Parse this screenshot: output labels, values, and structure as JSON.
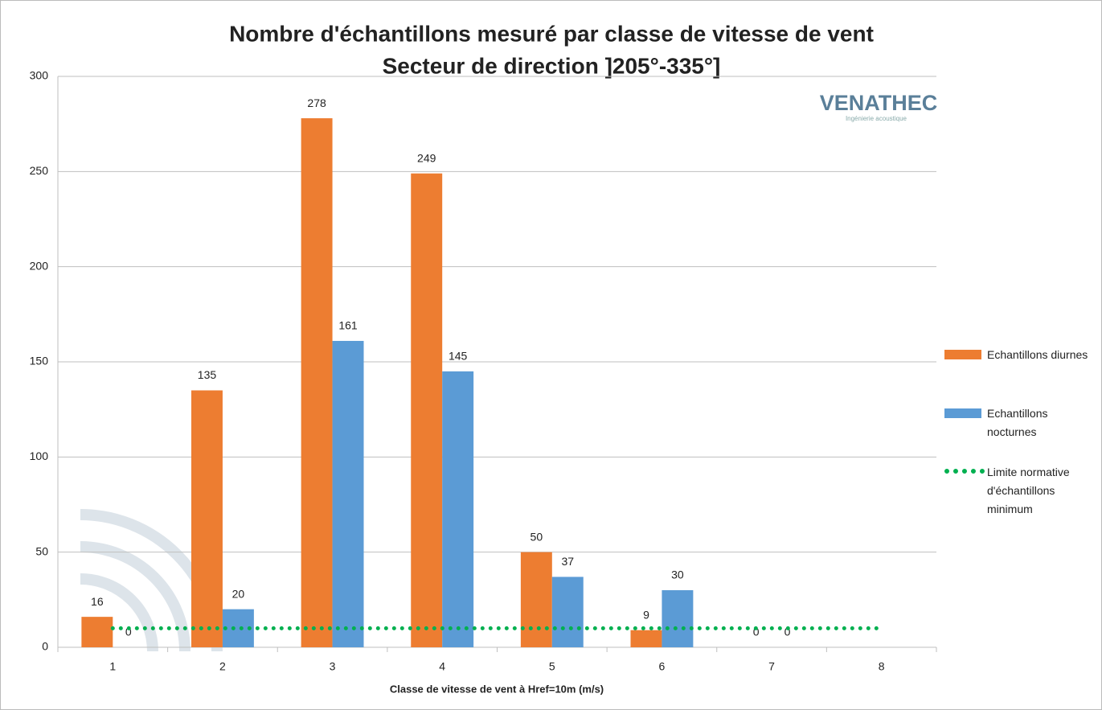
{
  "chart_data": {
    "type": "bar",
    "title": "Nombre d'échantillons mesuré par classe de vitesse de vent",
    "subtitle": "Secteur de direction ]205°-335°]",
    "x_label": "Classe de vitesse de vent à Href=10m (m/s)",
    "logo": {
      "name": "VENATHEC",
      "tagline": "Ingénierie acoustique"
    },
    "categories": [
      "1",
      "2",
      "3",
      "4",
      "5",
      "6",
      "7",
      "8"
    ],
    "series": [
      {
        "name": "Echantillons diurnes",
        "color": "#ED7D31",
        "values": [
          16,
          135,
          278,
          249,
          50,
          9,
          0,
          null
        ]
      },
      {
        "name": "Echantillons nocturnes",
        "color": "#5B9BD5",
        "values": [
          0,
          20,
          161,
          145,
          37,
          30,
          0,
          null
        ]
      },
      {
        "name": "Limite normative d'échantillons minimum",
        "color": "#00B050",
        "type": "line",
        "style": "dotted",
        "values": [
          10,
          10,
          10,
          10,
          10,
          10,
          10,
          10
        ]
      }
    ],
    "ylim": [
      0,
      300
    ],
    "yticks": [
      0,
      50,
      100,
      150,
      200,
      250,
      300
    ],
    "grid": true,
    "legend": "right"
  }
}
